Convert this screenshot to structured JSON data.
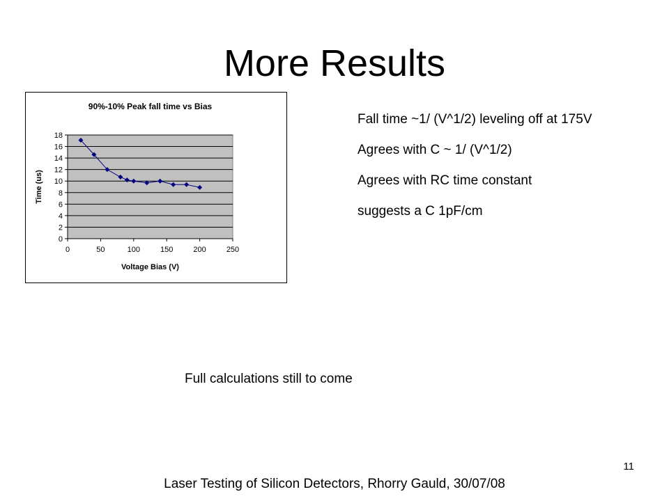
{
  "slide": {
    "title": "More Results",
    "notes": [
      "Fall time ~1/ (V^1/2) leveling off at 175V",
      "Agrees with C ~ 1/ (V^1/2)",
      "Agrees with RC time constant",
      "suggests a C 1pF/cm"
    ],
    "todo": "Full calculations still to come",
    "page_number": "11",
    "footer": "Laser Testing of Silicon Detectors, Rhorry Gauld, 30/07/08"
  },
  "chart_data": {
    "type": "line",
    "title": "90%-10% Peak fall time vs Bias",
    "xlabel": "Voltage Bias (V)",
    "ylabel": "Time (us)",
    "xlim": [
      0,
      250
    ],
    "ylim": [
      0,
      18
    ],
    "xticks": [
      0,
      50,
      100,
      150,
      200,
      250
    ],
    "yticks": [
      0,
      2,
      4,
      6,
      8,
      10,
      12,
      14,
      16,
      18
    ],
    "grid": true,
    "legend": "none",
    "colors": {
      "series": "#000080",
      "plot_bg": "#c0c0c0",
      "grid": "#000000"
    },
    "series": [
      {
        "x": [
          20,
          40,
          60,
          80,
          90,
          100,
          120,
          140,
          160,
          180,
          200
        ],
        "y": [
          17.1,
          14.6,
          12.0,
          10.7,
          10.2,
          10.0,
          9.7,
          10.0,
          9.4,
          9.4,
          8.9
        ]
      }
    ]
  }
}
